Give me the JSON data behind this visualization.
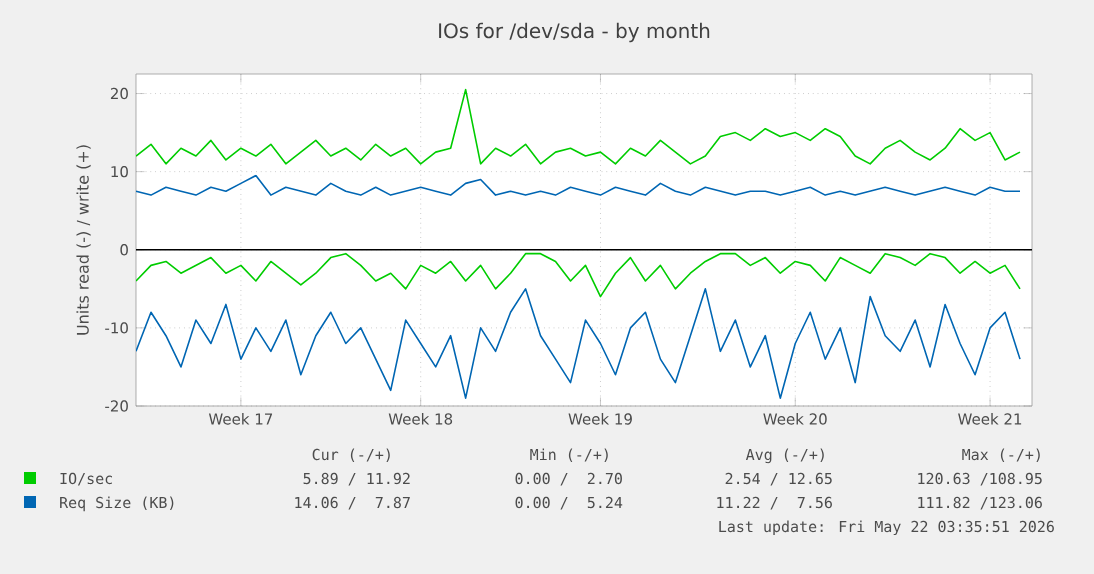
{
  "chart_data": {
    "type": "line",
    "title": "IOs for /dev/sda - by month",
    "ylabel": "Units read (-) / write (+)",
    "ylim": [
      -20,
      22.5
    ],
    "yticks": [
      -20,
      -10,
      0,
      10,
      20
    ],
    "categories": [
      null,
      null,
      null,
      null,
      null,
      null,
      null,
      "Week 17",
      null,
      null,
      null,
      null,
      null,
      null,
      null,
      null,
      null,
      null,
      null,
      "Week 18",
      null,
      null,
      null,
      null,
      null,
      null,
      null,
      null,
      null,
      null,
      null,
      "Week 19",
      null,
      null,
      null,
      null,
      null,
      null,
      null,
      null,
      null,
      null,
      null,
      null,
      "Week 20",
      null,
      null,
      null,
      null,
      null,
      null,
      null,
      null,
      null,
      null,
      null,
      null,
      "Week 21",
      null,
      null
    ],
    "series": [
      {
        "name": "IO/sec",
        "color": "#00cc00",
        "values": [
          12,
          13.5,
          11,
          13,
          12,
          14,
          11.5,
          13,
          12,
          13.5,
          11,
          12.5,
          14,
          12,
          13,
          11.5,
          13.5,
          12,
          13,
          11,
          12.5,
          13,
          20.5,
          11,
          13,
          12,
          13.5,
          11,
          12.5,
          13,
          12,
          12.5,
          11,
          13,
          12,
          14,
          12.5,
          11,
          12,
          14.5,
          15,
          14,
          15.5,
          14.5,
          15,
          14,
          15.5,
          14.5,
          12,
          11,
          13,
          14,
          12.5,
          11.5,
          13,
          15.5,
          14,
          15,
          11.5,
          12.5
        ]
      },
      {
        "name": "Req Size (KB)",
        "color": "#0066b3",
        "values": [
          7.5,
          7,
          8,
          7.5,
          7,
          8,
          7.5,
          8.5,
          9.5,
          7,
          8,
          7.5,
          7,
          8.5,
          7.5,
          7,
          8,
          7,
          7.5,
          8,
          7.5,
          7,
          8.5,
          9,
          7,
          7.5,
          7,
          7.5,
          7,
          8,
          7.5,
          7,
          8,
          7.5,
          7,
          8.5,
          7.5,
          7,
          8,
          7.5,
          7,
          7.5,
          7.5,
          7,
          7.5,
          8,
          7,
          7.5,
          7,
          7.5,
          8,
          7.5,
          7,
          7.5,
          8,
          7.5,
          7,
          8,
          7.5,
          7.5
        ]
      },
      {
        "color": "#00cc00",
        "values": [
          -4,
          -2,
          -1.5,
          -3,
          -2,
          -1,
          -3,
          -2,
          -4,
          -1.5,
          -3,
          -4.5,
          -3,
          -1,
          -0.5,
          -2,
          -4,
          -3,
          -5,
          -2,
          -3,
          -1.5,
          -4,
          -2,
          -5,
          -3,
          -0.5,
          -0.5,
          -1.5,
          -4,
          -2,
          -6,
          -3,
          -1,
          -4,
          -2,
          -5,
          -3,
          -1.5,
          -0.5,
          -0.5,
          -2,
          -1,
          -3,
          -1.5,
          -2,
          -4,
          -1,
          -2,
          -3,
          -0.5,
          -1,
          -2,
          -0.5,
          -1,
          -3,
          -1.5,
          -3,
          -2,
          -5
        ]
      },
      {
        "color": "#0066b3",
        "values": [
          -13,
          -8,
          -11,
          -15,
          -9,
          -12,
          -7,
          -14,
          -10,
          -13,
          -9,
          -16,
          -11,
          -8,
          -12,
          -10,
          -14,
          -18,
          -9,
          -12,
          -15,
          -11,
          -19,
          -10,
          -13,
          -8,
          -5,
          -11,
          -14,
          -17,
          -9,
          -12,
          -16,
          -10,
          -8,
          -14,
          -17,
          -11,
          -5,
          -13,
          -9,
          -15,
          -11,
          -19,
          -12,
          -8,
          -14,
          -10,
          -17,
          -6,
          -11,
          -13,
          -9,
          -15,
          -7,
          -12,
          -16,
          -10,
          -8,
          -14
        ]
      }
    ],
    "ref_lines": [
      {
        "axis": "y",
        "value": 0,
        "color": "#000000"
      }
    ],
    "grid": true,
    "legend": "bottom",
    "annotations": [
      "Cur (-/+)",
      "Min (-/+)",
      "Avg (-/+)",
      "Max (-/+)",
      "5.89 / 11.92",
      "0.00 /  2.70",
      "2.54 / 12.65",
      "120.63 /108.95",
      "14.06 /  7.87",
      "0.00 /  5.24",
      "11.22 /  7.56",
      "111.82 /123.06",
      "Last update: Fri May 22 03:35:51 2026"
    ]
  }
}
